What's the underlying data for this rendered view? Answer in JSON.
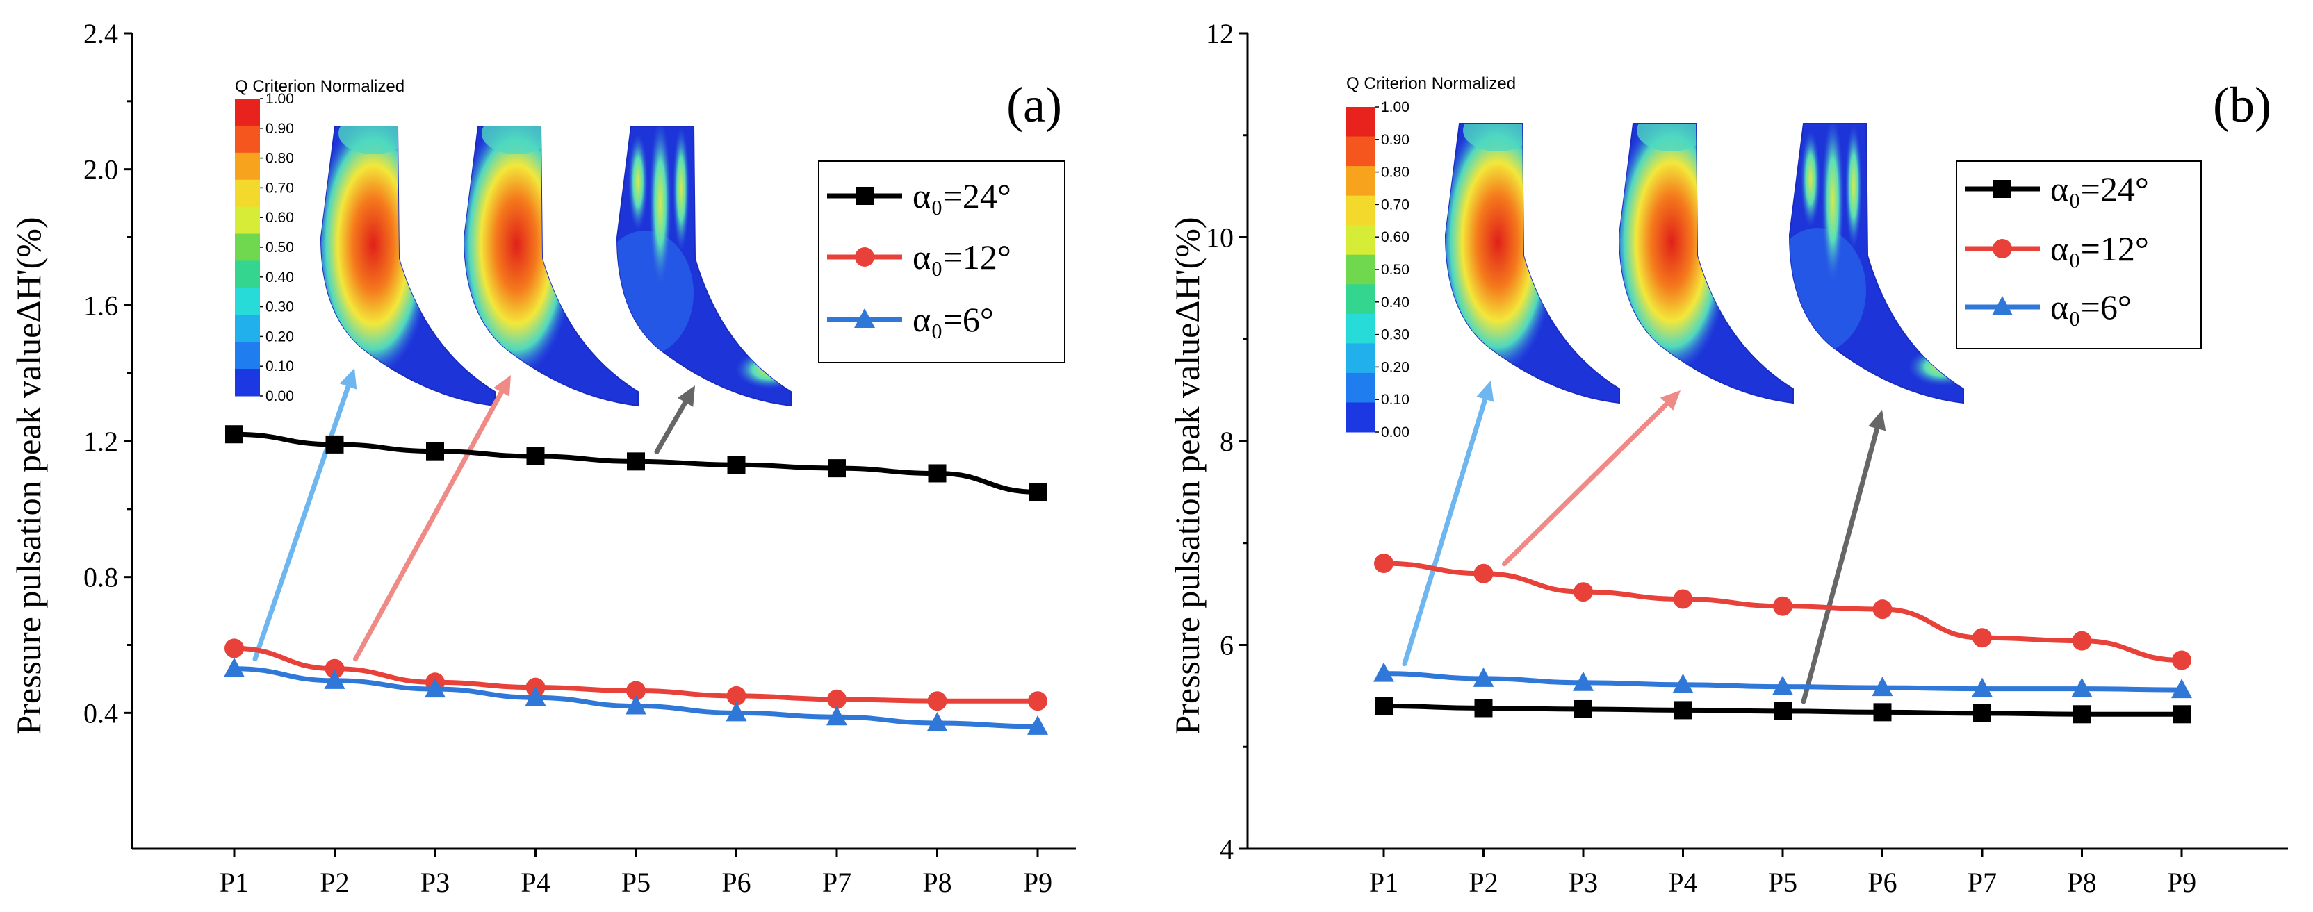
{
  "chart_data": [
    {
      "type": "line",
      "panel_label": "(a)",
      "categories": [
        "P1",
        "P2",
        "P3",
        "P4",
        "P5",
        "P6",
        "P7",
        "P8",
        "P9"
      ],
      "ylabel": "Pressure pulsation peak valueΔH'(%)",
      "ylim": [
        0.0,
        2.4
      ],
      "yticks": [
        "0.4",
        "0.8",
        "1.2",
        "1.6",
        "2.0",
        "2.4"
      ],
      "ytick_values": [
        0.4,
        0.8,
        1.2,
        1.6,
        2.0,
        2.4
      ],
      "grid": false,
      "legend_position": "upper-right",
      "series": [
        {
          "name": "α₀=24°",
          "color": "#000000",
          "marker": "square",
          "values": [
            1.22,
            1.19,
            1.17,
            1.155,
            1.14,
            1.13,
            1.12,
            1.105,
            1.05
          ]
        },
        {
          "name": "α₀=12°",
          "color": "#e8413a",
          "marker": "circle",
          "values": [
            0.59,
            0.53,
            0.49,
            0.475,
            0.465,
            0.45,
            0.44,
            0.435,
            0.435
          ]
        },
        {
          "name": "α₀=6°",
          "color": "#2f78d8",
          "marker": "triangle",
          "values": [
            0.53,
            0.495,
            0.47,
            0.445,
            0.42,
            0.4,
            0.388,
            0.37,
            0.36
          ]
        }
      ],
      "inset": {
        "title": "Q Criterion Normalized",
        "colorbar_ticks": [
          "1.00",
          "0.90",
          "0.80",
          "0.70",
          "0.60",
          "0.50",
          "0.40",
          "0.30",
          "0.20",
          "0.10",
          "0.00"
        ],
        "arrows": [
          {
            "from_series": "α₀=6°",
            "color": "#6db6f0"
          },
          {
            "from_series": "α₀=12°",
            "color": "#f08a86"
          },
          {
            "from_series": "α₀=24°",
            "color": "#666666"
          }
        ]
      }
    },
    {
      "type": "line",
      "panel_label": "(b)",
      "categories": [
        "P1",
        "P2",
        "P3",
        "P4",
        "P5",
        "P6",
        "P7",
        "P8",
        "P9"
      ],
      "ylabel": "Pressure pulsation peak valueΔH'(%)",
      "ylim": [
        4,
        12
      ],
      "yticks": [
        "4",
        "6",
        "8",
        "10",
        "12"
      ],
      "ytick_values": [
        4,
        6,
        8,
        10,
        12
      ],
      "grid": false,
      "legend_position": "upper-right",
      "series": [
        {
          "name": "α₀=24°",
          "color": "#000000",
          "marker": "square",
          "values": [
            5.4,
            5.38,
            5.37,
            5.36,
            5.35,
            5.34,
            5.33,
            5.32,
            5.32
          ]
        },
        {
          "name": "α₀=12°",
          "color": "#e8413a",
          "marker": "circle",
          "values": [
            6.8,
            6.7,
            6.52,
            6.45,
            6.38,
            6.35,
            6.07,
            6.04,
            5.85
          ]
        },
        {
          "name": "α₀=6°",
          "color": "#2f78d8",
          "marker": "triangle",
          "values": [
            5.72,
            5.67,
            5.63,
            5.61,
            5.59,
            5.58,
            5.57,
            5.57,
            5.56
          ]
        }
      ],
      "inset": {
        "title": "Q Criterion Normalized",
        "colorbar_ticks": [
          "1.00",
          "0.90",
          "0.80",
          "0.70",
          "0.60",
          "0.50",
          "0.40",
          "0.30",
          "0.20",
          "0.10",
          "0.00"
        ],
        "arrows": [
          {
            "from_series": "α₀=6°",
            "color": "#6db6f0"
          },
          {
            "from_series": "α₀=12°",
            "color": "#f08a86"
          },
          {
            "from_series": "α₀=24°",
            "color": "#666666"
          }
        ]
      }
    }
  ]
}
